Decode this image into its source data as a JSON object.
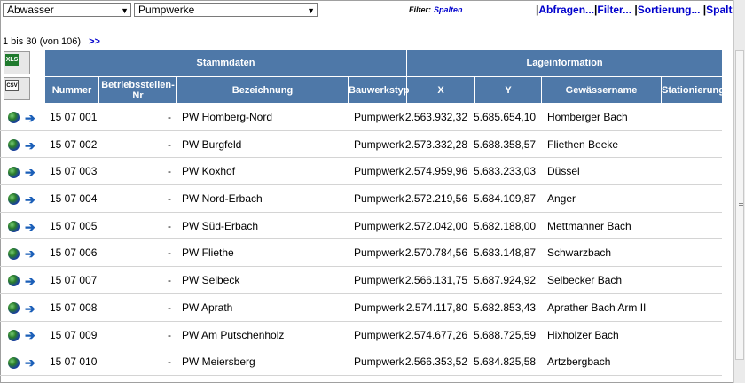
{
  "selects": {
    "category": "Abwasser",
    "layer": "Pumpwerke"
  },
  "filter": {
    "label": "Filter:",
    "value": "Spalten"
  },
  "menu": [
    "Abfragen...",
    "Filter...",
    "Sortierung...",
    "Spalten..."
  ],
  "paging": {
    "text": "1 bis 30 (von 106)",
    "next": ">>"
  },
  "export": {
    "xls": "XLS",
    "csv": "CSV"
  },
  "groups": {
    "stammdaten": "Stammdaten",
    "lage": "Lageinformation"
  },
  "columns": [
    "Nummer",
    "Betriebsstellen-Nr",
    "Bezeichnung",
    "Bauwerkstyp",
    "X",
    "Y",
    "Gewässername",
    "Stationierung"
  ],
  "rows": [
    {
      "nummer": "15 07 001",
      "betrieb": "-",
      "bez": "PW Homberg-Nord",
      "typ": "Pumpwerk",
      "x": "2.563.932,32",
      "y": "5.685.654,10",
      "gew": "Homberger Bach",
      "sta": ""
    },
    {
      "nummer": "15 07 002",
      "betrieb": "-",
      "bez": "PW Burgfeld",
      "typ": "Pumpwerk",
      "x": "2.573.332,28",
      "y": "5.688.358,57",
      "gew": "Fliethen Beeke",
      "sta": ""
    },
    {
      "nummer": "15 07 003",
      "betrieb": "-",
      "bez": "PW Koxhof",
      "typ": "Pumpwerk",
      "x": "2.574.959,96",
      "y": "5.683.233,03",
      "gew": "Düssel",
      "sta": ""
    },
    {
      "nummer": "15 07 004",
      "betrieb": "-",
      "bez": "PW Nord-Erbach",
      "typ": "Pumpwerk",
      "x": "2.572.219,56",
      "y": "5.684.109,87",
      "gew": "Anger",
      "sta": ""
    },
    {
      "nummer": "15 07 005",
      "betrieb": "-",
      "bez": "PW Süd-Erbach",
      "typ": "Pumpwerk",
      "x": "2.572.042,00",
      "y": "5.682.188,00",
      "gew": "Mettmanner Bach",
      "sta": ""
    },
    {
      "nummer": "15 07 006",
      "betrieb": "-",
      "bez": "PW Fliethe",
      "typ": "Pumpwerk",
      "x": "2.570.784,56",
      "y": "5.683.148,87",
      "gew": "Schwarzbach",
      "sta": ""
    },
    {
      "nummer": "15 07 007",
      "betrieb": "-",
      "bez": "PW Selbeck",
      "typ": "Pumpwerk",
      "x": "2.566.131,75",
      "y": "5.687.924,92",
      "gew": "Selbecker Bach",
      "sta": ""
    },
    {
      "nummer": "15 07 008",
      "betrieb": "-",
      "bez": "PW Aprath",
      "typ": "Pumpwerk",
      "x": "2.574.117,80",
      "y": "5.682.853,43",
      "gew": "Aprather Bach Arm II",
      "sta": ""
    },
    {
      "nummer": "15 07 009",
      "betrieb": "-",
      "bez": "PW Am Putschenholz",
      "typ": "Pumpwerk",
      "x": "2.574.677,26",
      "y": "5.688.725,59",
      "gew": "Hixholzer Bach",
      "sta": ""
    },
    {
      "nummer": "15 07 010",
      "betrieb": "-",
      "bez": "PW Meiersberg",
      "typ": "Pumpwerk",
      "x": "2.566.353,52",
      "y": "5.684.825,58",
      "gew": "Artzbergbach",
      "sta": ""
    }
  ],
  "icons": {
    "row_map": "globe-icon",
    "row_detail": "arrow-right-icon",
    "select_arrow": "triangle-down-icon"
  },
  "colors": {
    "header_bg": "#4e78a8",
    "link": "#0000cc"
  }
}
